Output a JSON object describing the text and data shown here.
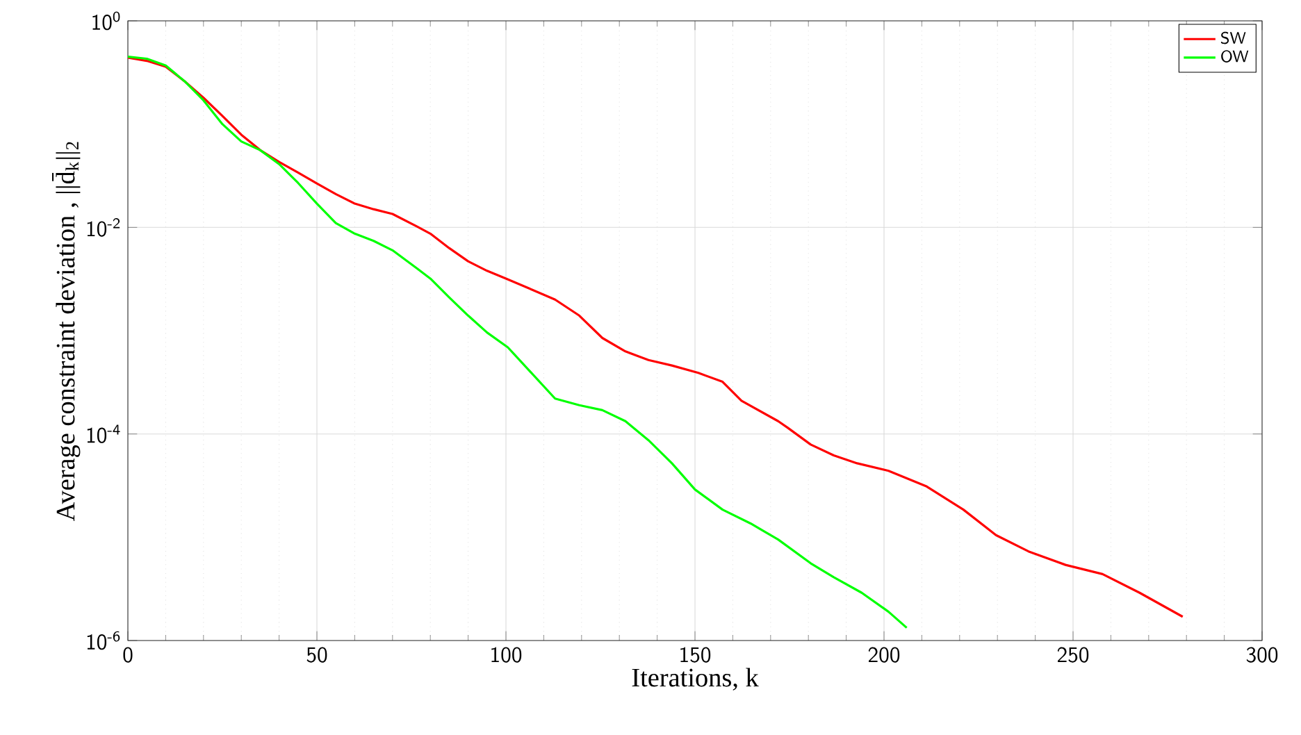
{
  "chart_data": {
    "type": "line",
    "xlabel": "Iterations, k",
    "ylabel": "Average constraint deviation , ||d̄$_{k}$||$_{2}$",
    "log": "y",
    "grid": true,
    "legend": "top right",
    "line_style": "solid",
    "marker": "none",
    "xlim": [
      0,
      300
    ],
    "xticks": [
      0,
      50,
      100,
      150,
      200,
      250,
      300
    ],
    "ylim": [
      1e-06,
      1
    ],
    "yticks": [
      {
        "value": 1e-06,
        "label": "10$^{-6}$"
      },
      {
        "value": 0.0001,
        "label": "10$^{-4}$"
      },
      {
        "value": 0.01,
        "label": "10$^{-2}$"
      },
      {
        "value": 1,
        "label": "10$^{0}$"
      }
    ],
    "series": [
      {
        "name": "SW",
        "color": "#ff0000",
        "x": [
          0,
          5,
          10,
          15,
          20,
          25,
          30,
          35,
          40,
          45,
          50,
          55,
          60,
          65,
          70,
          76.5,
          80,
          85,
          90,
          95,
          100,
          113,
          119.4,
          125.5,
          131.6,
          137.7,
          143.9,
          150.9,
          157.3,
          162.3,
          172,
          174.5,
          180.6,
          186.7,
          192.9,
          201.2,
          211.3,
          221,
          229.6,
          238.2,
          248,
          257.8,
          267.6,
          279
        ],
        "values": [
          0.44,
          0.41,
          0.36,
          0.26,
          0.18,
          0.12,
          0.079,
          0.056,
          0.043,
          0.034,
          0.0266,
          0.021,
          0.017,
          0.015,
          0.0135,
          0.0102,
          0.0087,
          0.0063,
          0.0047,
          0.0038,
          0.0032,
          0.002,
          0.0014,
          0.00085,
          0.00063,
          0.00052,
          0.00046,
          0.00039,
          0.00032,
          0.00021,
          0.000133,
          0.000115,
          7.9e-05,
          6.2e-05,
          5.2e-05,
          4.4e-05,
          3.1e-05,
          1.85e-05,
          1.05e-05,
          7.3e-06,
          5.4e-06,
          4.4e-06,
          2.9e-06,
          1.7e-06
        ]
      },
      {
        "name": "OW",
        "color": "#00ff00",
        "x": [
          0,
          5,
          10,
          15,
          20,
          25,
          30,
          35,
          40,
          45,
          50,
          55,
          60,
          65,
          70,
          76.5,
          80,
          85,
          90,
          95,
          100.5,
          113,
          119.4,
          125.5,
          131.6,
          137.7,
          143.9,
          150,
          157.3,
          164.7,
          172,
          180.6,
          186.7,
          194.1,
          201.2,
          206
        ],
        "values": [
          0.45,
          0.43,
          0.37,
          0.26,
          0.17,
          0.1,
          0.068,
          0.056,
          0.041,
          0.027,
          0.017,
          0.011,
          0.0087,
          0.0074,
          0.006,
          0.004,
          0.0032,
          0.0021,
          0.0014,
          0.00096,
          0.00069,
          0.00022,
          0.00019,
          0.00017,
          0.000133,
          8.7e-05,
          5.2e-05,
          2.9e-05,
          1.85e-05,
          1.36e-05,
          9.5e-06,
          5.6e-06,
          4.1e-06,
          2.9e-06,
          1.9e-06,
          1.33e-06
        ]
      }
    ]
  }
}
